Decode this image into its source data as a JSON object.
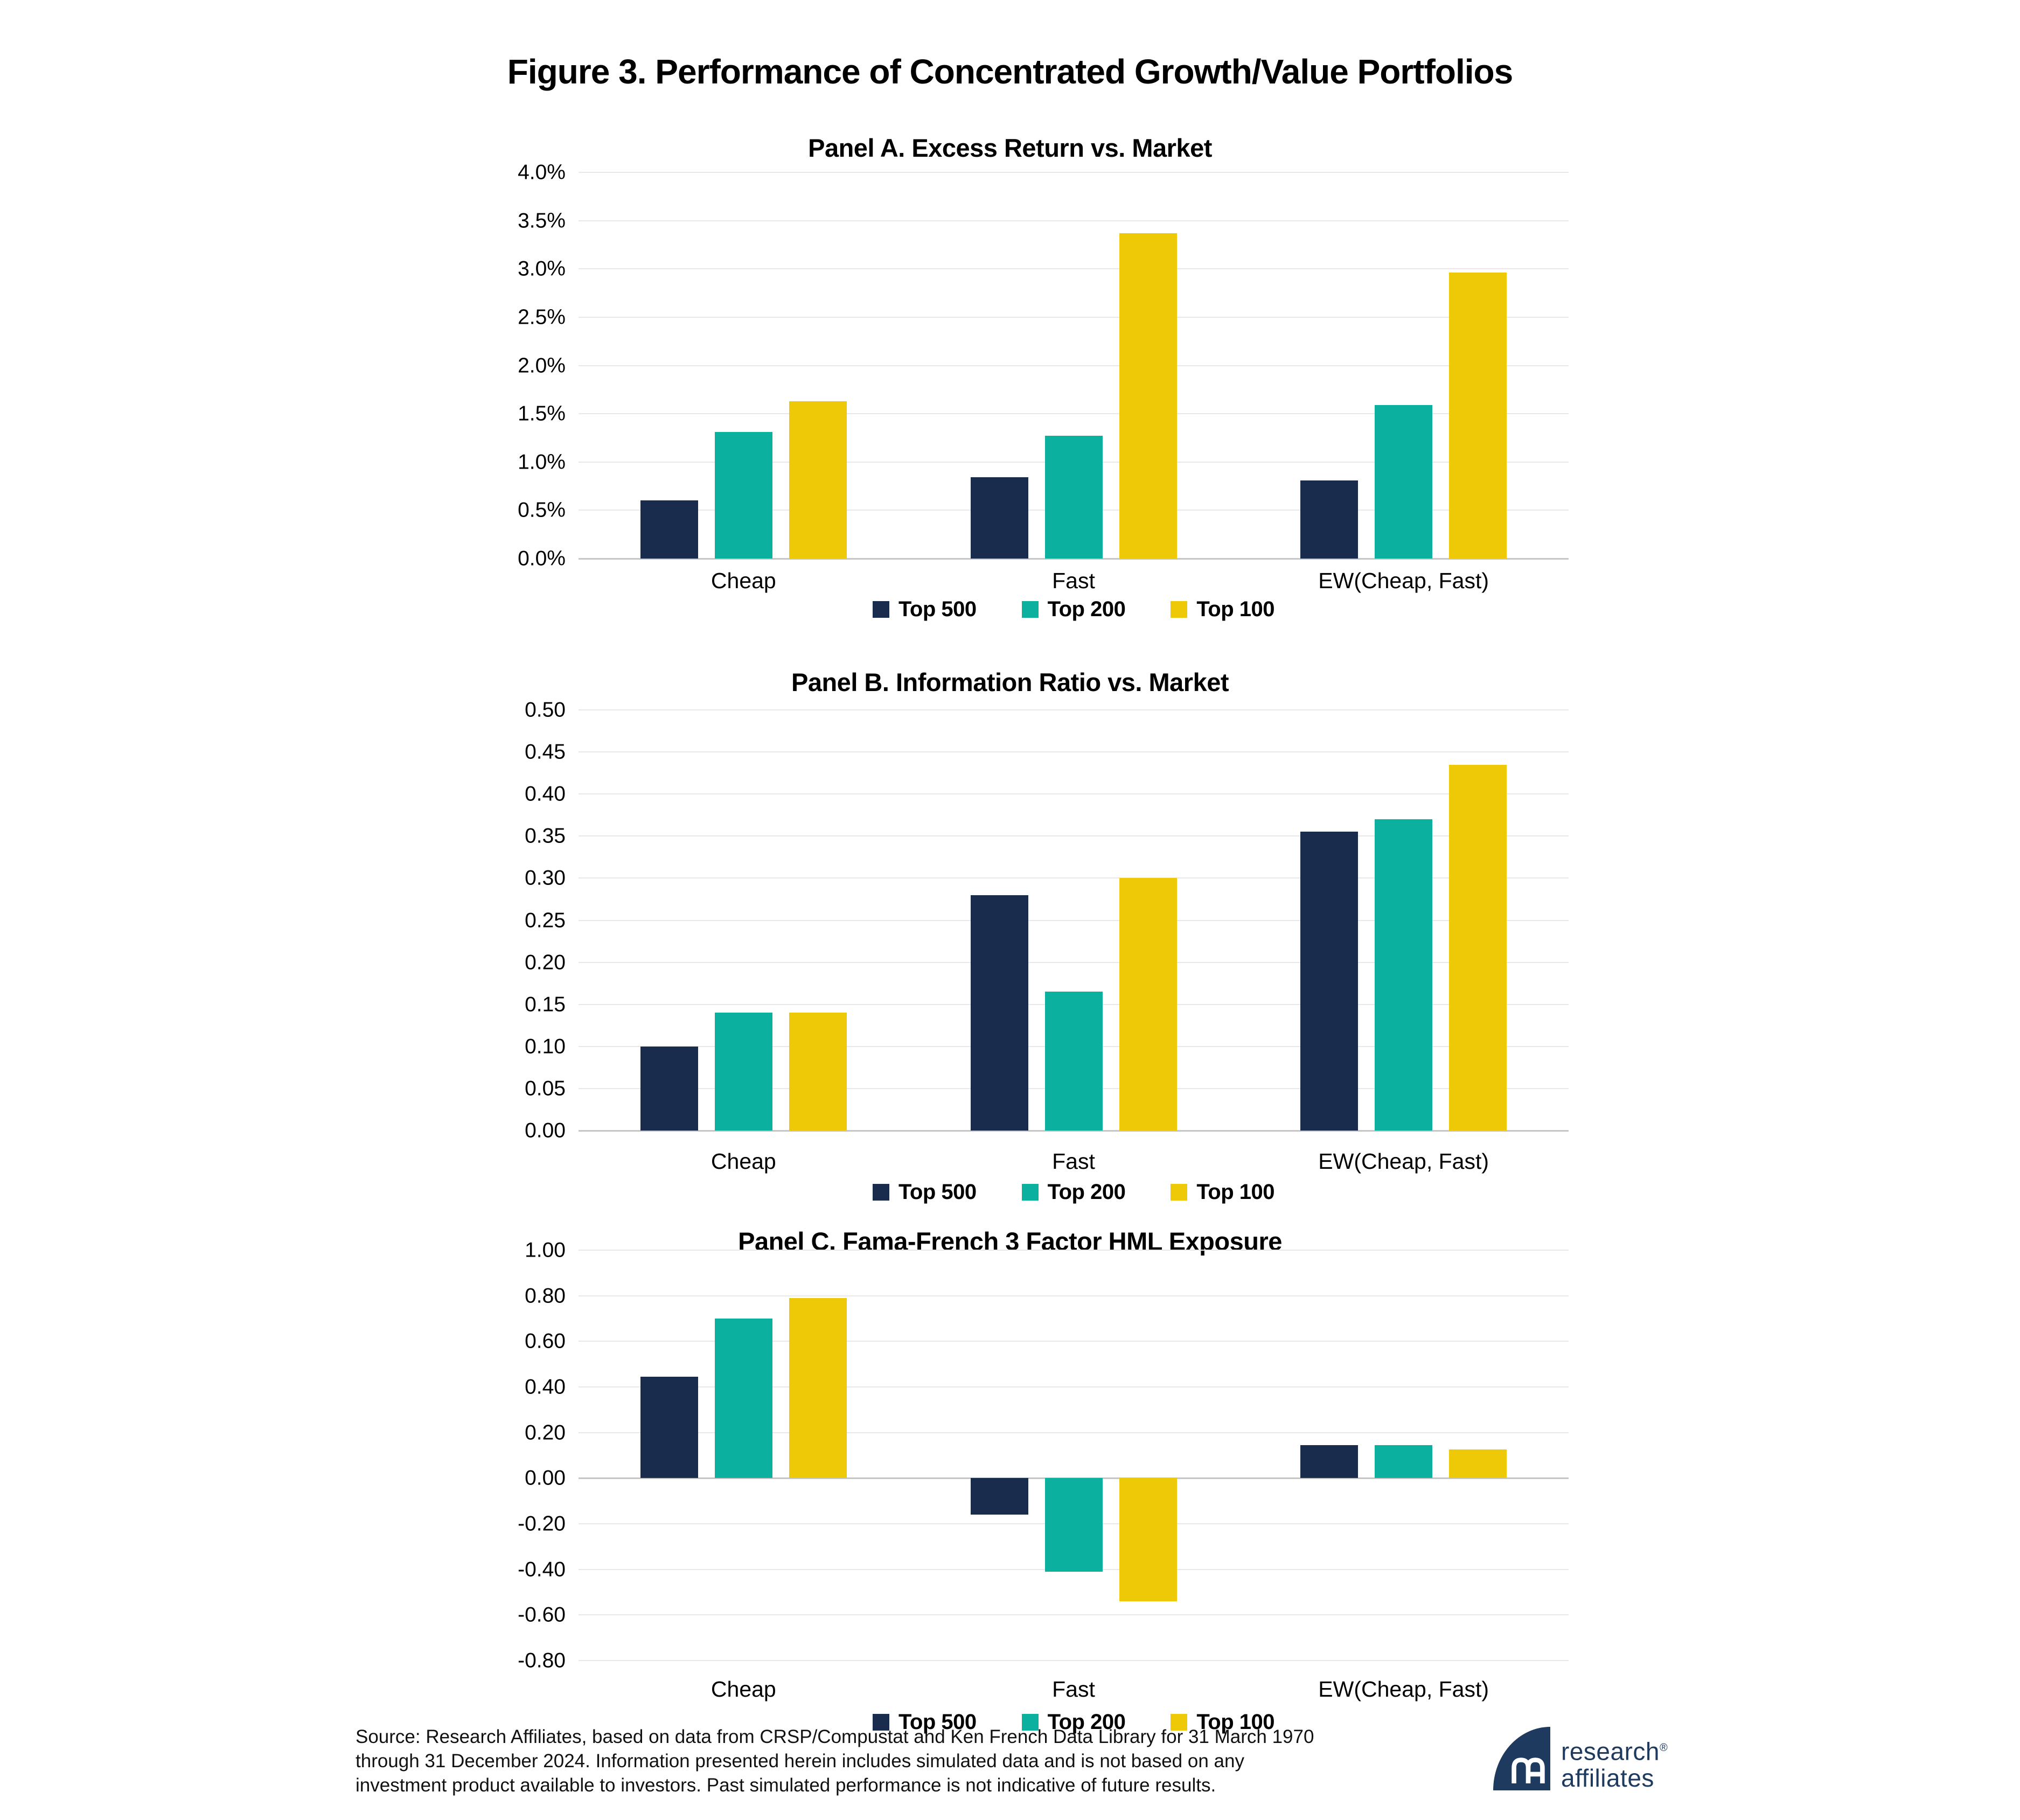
{
  "figure_title": "Figure 3. Performance of Concentrated Growth/Value Portfolios",
  "legend_labels": [
    "Top 500",
    "Top 200",
    "Top 100"
  ],
  "colors": {
    "series": [
      "#1a2c4d",
      "#0bb09e",
      "#eec908"
    ],
    "grid": "#e8e8e8",
    "zero_axis": "#c6c6c6",
    "logo_navy": "#1e3a5e"
  },
  "chart_data": [
    {
      "type": "bar",
      "title": "Panel A. Excess Return vs. Market",
      "categories": [
        "Cheap",
        "Fast",
        "EW(Cheap, Fast)"
      ],
      "series": [
        {
          "name": "Top 500",
          "values": [
            0.6,
            0.84,
            0.81
          ]
        },
        {
          "name": "Top 200",
          "values": [
            1.31,
            1.27,
            1.59
          ]
        },
        {
          "name": "Top 100",
          "values": [
            1.63,
            3.37,
            2.96
          ]
        }
      ],
      "ylim": [
        0.0,
        4.0
      ],
      "ytick_step": 0.5,
      "tick_decimals": 1,
      "tick_suffix": "%",
      "grid": true,
      "legend_position": "bottom"
    },
    {
      "type": "bar",
      "title": "Panel B. Information Ratio vs. Market",
      "categories": [
        "Cheap",
        "Fast",
        "EW(Cheap, Fast)"
      ],
      "series": [
        {
          "name": "Top 500",
          "values": [
            0.1,
            0.28,
            0.355
          ]
        },
        {
          "name": "Top 200",
          "values": [
            0.14,
            0.165,
            0.37
          ]
        },
        {
          "name": "Top 100",
          "values": [
            0.14,
            0.3,
            0.435
          ]
        }
      ],
      "ylim": [
        0.0,
        0.5
      ],
      "ytick_step": 0.05,
      "tick_decimals": 2,
      "tick_suffix": "",
      "grid": true,
      "legend_position": "bottom"
    },
    {
      "type": "bar",
      "title": "Panel C. Fama-French 3 Factor HML Exposure",
      "categories": [
        "Cheap",
        "Fast",
        "EW(Cheap, Fast)"
      ],
      "series": [
        {
          "name": "Top 500",
          "values": [
            0.445,
            -0.16,
            0.145
          ]
        },
        {
          "name": "Top 200",
          "values": [
            0.7,
            -0.41,
            0.145
          ]
        },
        {
          "name": "Top 100",
          "values": [
            0.79,
            -0.54,
            0.125
          ]
        }
      ],
      "ylim": [
        -0.8,
        1.0
      ],
      "ytick_step": 0.2,
      "tick_decimals": 2,
      "tick_suffix": "",
      "grid": true,
      "legend_position": "bottom"
    }
  ],
  "source_note": "Source: Research Affiliates, based on data from CRSP/Compustat and Ken French Data Library for 31 March 1970 through 31 December 2024. Information presented herein includes simulated data and is not based on any investment product available to investors. Past simulated performance is not indicative of future results.",
  "logo": {
    "brand_line1": "research",
    "brand_line2": "affiliates",
    "registered_mark": "®"
  }
}
